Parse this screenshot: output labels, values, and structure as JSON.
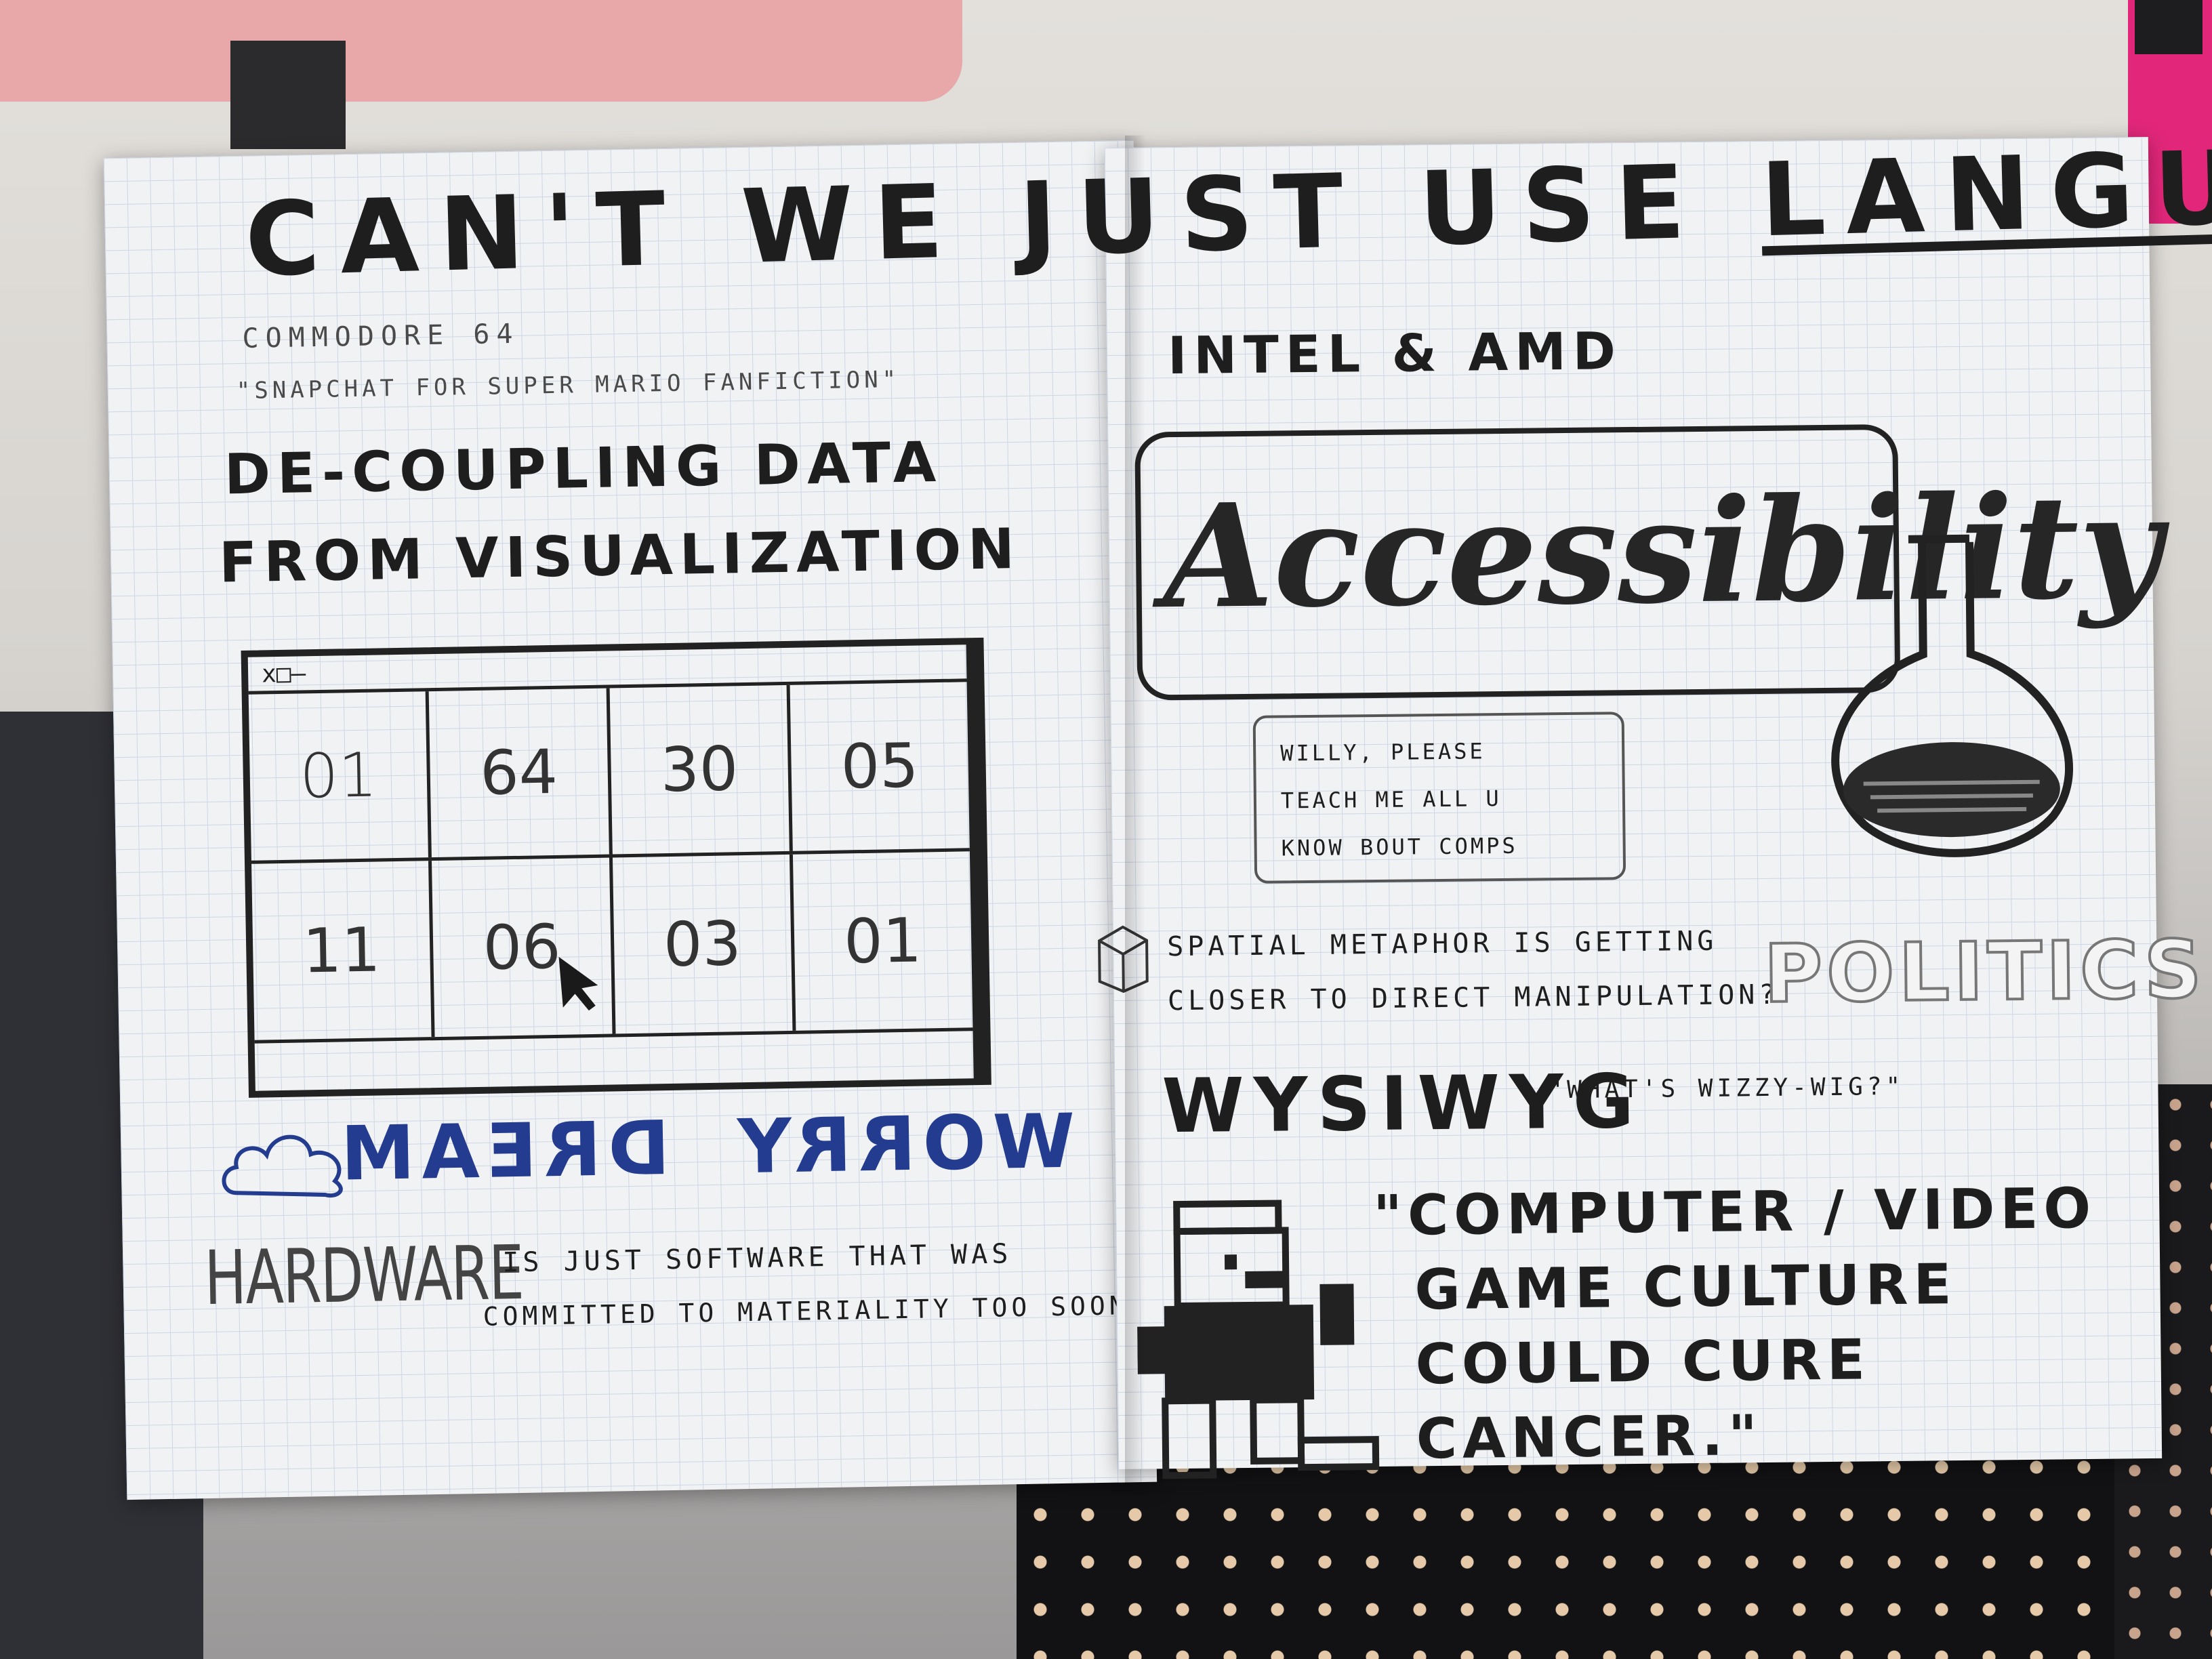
{
  "notebook": {
    "title_main": "CAN'T WE JUST USE",
    "title_underlined": "LANGUAGE?",
    "left_page": {
      "commodore": "COMMODORE 64",
      "snapchat": "\"SNAPCHAT FOR SUPER MARIO FANFICTION\"",
      "decoupling_line1": "DE-COUPLING DATA",
      "decoupling_line2": "FROM VISUALIZATION",
      "grid_window_controls": "x□–",
      "grid_row1": [
        "01",
        "64",
        "30",
        "05"
      ],
      "grid_row2": [
        "11",
        "06",
        "03",
        "01"
      ],
      "dream": "DREAM",
      "worry": "WORRY",
      "hardware": "HARDWARE",
      "hardware_note_line1": "IS JUST SOFTWARE THAT WAS",
      "hardware_note_line2": "COMMITTED TO MATERIALITY TOO SOON."
    },
    "right_page": {
      "intel_amd": "INTEL & AMD",
      "accessibility": "Accessibility",
      "willy_line1": "WILLY, PLEASE",
      "willy_line2": "TEACH ME ALL U",
      "willy_line3": "KNOW BOUT COMPS",
      "spatial_line1": "SPATIAL METAPHOR IS GETTING",
      "spatial_line2": "CLOSER TO DIRECT MANIPULATION?",
      "politics": "POLITICS",
      "wysiwyg": "WYSIWYG",
      "wizzywig": "\"WHAT'S WIZZY-WIG?\"",
      "quote_line1": "\"COMPUTER / VIDEO",
      "quote_line2": "GAME CULTURE",
      "quote_line3": "COULD CURE",
      "quote_line4": "CANCER.\""
    }
  },
  "colors": {
    "ink": "#1e1e1e",
    "blue_ink": "#233c8f",
    "paper": "#f1f2f4",
    "grid": "#cdd6e6",
    "marker_pink": "#e2277a"
  }
}
